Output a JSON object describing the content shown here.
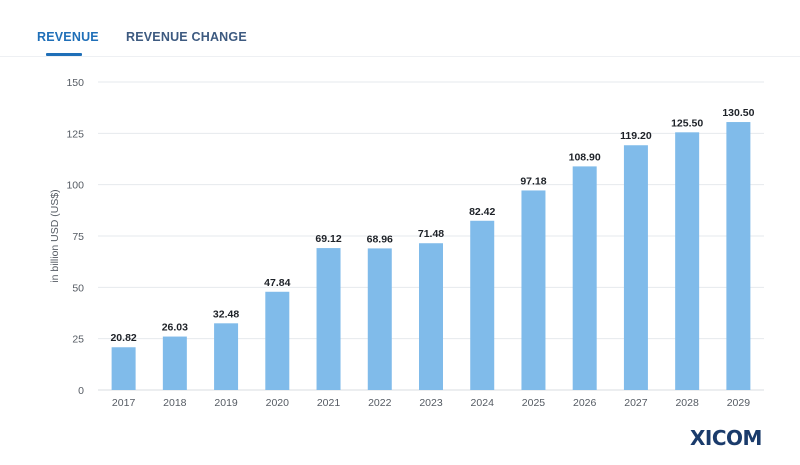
{
  "tabs": [
    {
      "label": "REVENUE",
      "active": true
    },
    {
      "label": "REVENUE CHANGE",
      "active": false
    }
  ],
  "logo": "XICOM",
  "colors": {
    "bar": "#80bbea",
    "active_tab": "#1f6fb8",
    "inactive_tab": "#3d5a80",
    "grid": "#e6e9ed",
    "logo": "#1a3b6b"
  },
  "chart_data": {
    "type": "bar",
    "categories": [
      "2017",
      "2018",
      "2019",
      "2020",
      "2021",
      "2022",
      "2023",
      "2024",
      "2025",
      "2026",
      "2027",
      "2028",
      "2029"
    ],
    "values": [
      20.82,
      26.03,
      32.48,
      47.84,
      69.12,
      68.96,
      71.48,
      82.42,
      97.18,
      108.9,
      119.2,
      125.5,
      130.5
    ],
    "value_labels": [
      "20.82",
      "26.03",
      "32.48",
      "47.84",
      "69.12",
      "68.96",
      "71.48",
      "82.42",
      "97.18",
      "108.90",
      "119.20",
      "125.50",
      "130.50"
    ],
    "ylabel": "in billion USD (US$)",
    "yticks": [
      0,
      25,
      50,
      75,
      100,
      125,
      150
    ],
    "ylim": [
      0,
      150
    ],
    "grid": true
  }
}
